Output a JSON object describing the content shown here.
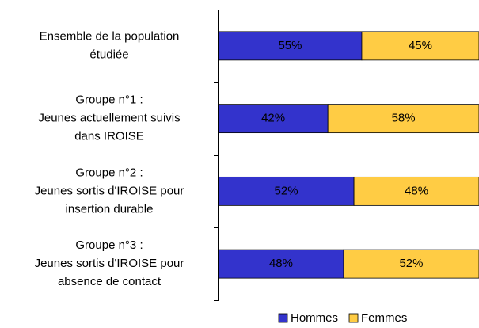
{
  "chart_data": {
    "type": "bar",
    "orientation": "horizontal",
    "stacked": true,
    "categories": [
      "Ensemble de la population\nétudiée",
      "Groupe n°1 :\nJeunes actuellement suivis\ndans IROISE",
      "Groupe n°2 :\nJeunes sortis d'IROISE pour\ninsertion durable",
      "Groupe n°3 :\nJeunes sortis d'IROISE pour\nabsence de contact"
    ],
    "series": [
      {
        "name": "Hommes",
        "color": "#3333cc",
        "label_color": "#ffffff",
        "values": [
          55,
          42,
          52,
          48
        ],
        "value_labels": [
          "55%",
          "42%",
          "52%",
          "48%"
        ]
      },
      {
        "name": "Femmes",
        "color": "#ffcc44",
        "label_color": "#000000",
        "values": [
          45,
          58,
          48,
          52
        ],
        "value_labels": [
          "45%",
          "58%",
          "48%",
          "52%"
        ]
      }
    ],
    "legend": "bottom"
  }
}
